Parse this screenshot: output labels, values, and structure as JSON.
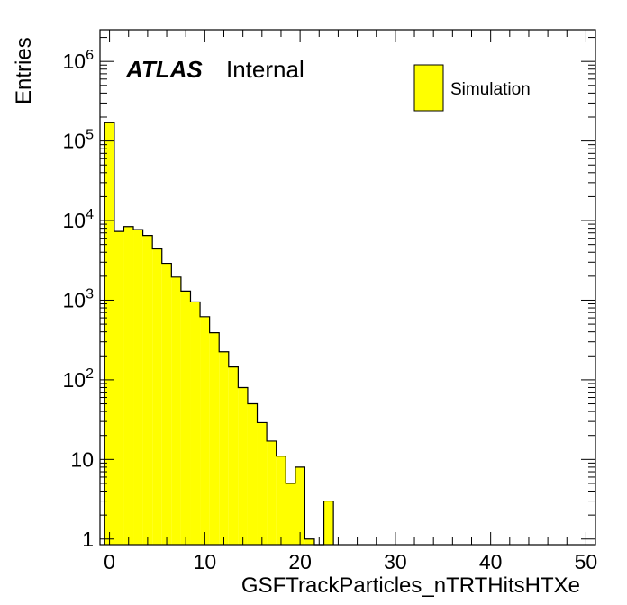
{
  "chart_data": {
    "type": "bar",
    "xlabel": "GSFTrackParticles_nTRTHitsHTXe",
    "ylabel": "Entries",
    "xlim": [
      -1,
      51
    ],
    "ylim": [
      0.85,
      2500000
    ],
    "yscale": "log",
    "bin_width": 1,
    "x": [
      0,
      1,
      2,
      3,
      4,
      5,
      6,
      7,
      8,
      9,
      10,
      11,
      12,
      13,
      14,
      15,
      16,
      17,
      18,
      19,
      20,
      21,
      22,
      23
    ],
    "values": [
      170000,
      7300,
      8400,
      7700,
      6500,
      4400,
      2900,
      1950,
      1300,
      950,
      620,
      390,
      225,
      145,
      80,
      50,
      29,
      17,
      11,
      5,
      8,
      1,
      0,
      3
    ],
    "x_tick_labels": [
      "0",
      "10",
      "20",
      "30",
      "40",
      "50"
    ],
    "y_tick_labels": [
      {
        "base": "1",
        "exp": ""
      },
      {
        "base": "10",
        "exp": ""
      },
      {
        "base": "10",
        "exp": "2"
      },
      {
        "base": "10",
        "exp": "3"
      },
      {
        "base": "10",
        "exp": "4"
      },
      {
        "base": "10",
        "exp": "5"
      },
      {
        "base": "10",
        "exp": "6"
      }
    ],
    "legend": {
      "entries": [
        {
          "label": "Simulation",
          "color": "#ffff00"
        }
      ],
      "placement": "top-right"
    },
    "annotation": {
      "experiment": "ATLAS",
      "status": "Internal"
    },
    "fill_color": "#ffff00",
    "line_color": "#000000",
    "grid": false
  }
}
